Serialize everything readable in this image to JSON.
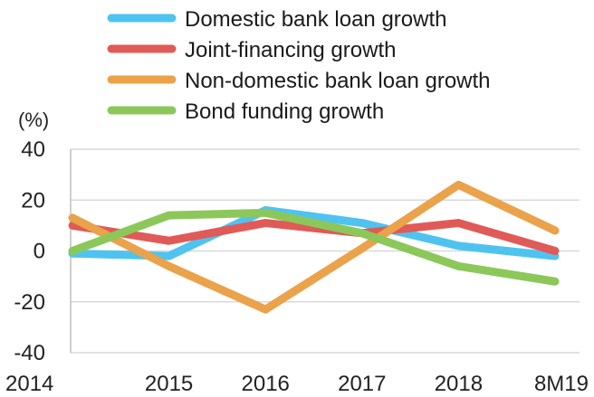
{
  "chart_data": {
    "type": "line",
    "categories": [
      "2014",
      "2015",
      "2016",
      "2017",
      "2018",
      "8M19"
    ],
    "y_unit": "(%)",
    "ylim": [
      -40,
      40
    ],
    "yticks": [
      40,
      20,
      0,
      -20,
      -40
    ],
    "grid": "horizontal",
    "legend_position": "top",
    "series": [
      {
        "name": "Domestic bank loan growth",
        "color": "#4fc3f0",
        "values": [
          -1,
          -2,
          16,
          11,
          2,
          -2
        ]
      },
      {
        "name": "Joint-financing growth",
        "color": "#e05a57",
        "values": [
          10,
          4,
          11,
          7,
          11,
          0
        ]
      },
      {
        "name": "Non-domestic bank loan growth",
        "color": "#eaa24b",
        "values": [
          13,
          -6,
          -23,
          1,
          26,
          8
        ]
      },
      {
        "name": "Bond funding growth",
        "color": "#8cc75a",
        "values": [
          0,
          14,
          15,
          7,
          -6,
          -12
        ]
      }
    ]
  }
}
